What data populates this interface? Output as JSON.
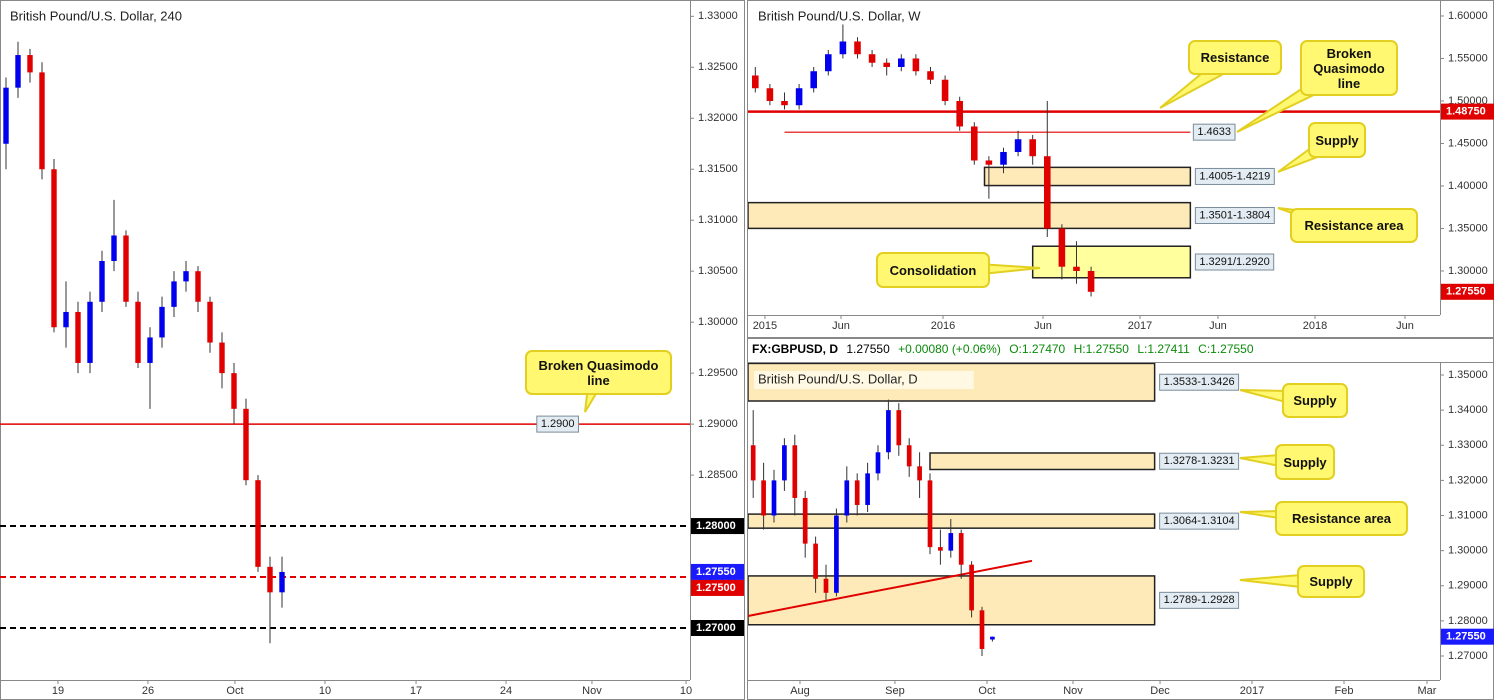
{
  "chart_data": [
    {
      "type": "candlestick",
      "title": "British Pound/U.S. Dollar, 240",
      "up_color": "#0000ee",
      "down_color": "#e00000",
      "xlim": [
        0,
        57.5
      ],
      "xticks": [
        {
          "value": 4.83,
          "label": "19"
        },
        {
          "value": 12.33,
          "label": "26"
        },
        {
          "value": 19.58,
          "label": "Oct"
        },
        {
          "value": 27.08,
          "label": "10"
        },
        {
          "value": 34.67,
          "label": "17"
        },
        {
          "value": 42.17,
          "label": "24"
        },
        {
          "value": 49.33,
          "label": "Nov"
        },
        {
          "value": 57.17,
          "label": "10"
        }
      ],
      "ylim": [
        1.2649,
        1.3316
      ],
      "yticks": [
        {
          "value": 1.33,
          "label": "1.33000"
        },
        {
          "value": 1.325,
          "label": "1.32500"
        },
        {
          "value": 1.32,
          "label": "1.32000"
        },
        {
          "value": 1.315,
          "label": "1.31500"
        },
        {
          "value": 1.31,
          "label": "1.31000"
        },
        {
          "value": 1.305,
          "label": "1.30500"
        },
        {
          "value": 1.3,
          "label": "1.30000"
        },
        {
          "value": 1.295,
          "label": "1.29500"
        },
        {
          "value": 1.29,
          "label": "1.29000"
        },
        {
          "value": 1.285,
          "label": "1.28500"
        },
        {
          "value": 1.28,
          "label": "1.28000"
        },
        {
          "value": 1.275,
          "label": "1.27500"
        },
        {
          "value": 1.27,
          "label": "1.27000"
        }
      ],
      "open": [
        1.3175,
        1.323,
        1.3262,
        1.3245,
        1.315,
        1.2995,
        1.301,
        1.296,
        1.302,
        1.306,
        1.3085,
        1.302,
        1.296,
        1.2985,
        1.3015,
        1.304,
        1.305,
        1.302,
        1.298,
        1.295,
        1.2915,
        1.2845,
        1.276,
        1.2735
      ],
      "high": [
        1.324,
        1.3275,
        1.3268,
        1.3255,
        1.316,
        1.304,
        1.302,
        1.303,
        1.307,
        1.312,
        1.309,
        1.303,
        1.2995,
        1.3025,
        1.305,
        1.306,
        1.3055,
        1.3025,
        1.299,
        1.296,
        1.2925,
        1.285,
        1.277,
        1.277
      ],
      "low": [
        1.315,
        1.322,
        1.3235,
        1.314,
        1.299,
        1.2975,
        1.295,
        1.295,
        1.301,
        1.305,
        1.3015,
        1.2955,
        1.2915,
        1.2975,
        1.3005,
        1.303,
        1.301,
        1.297,
        1.2935,
        1.29,
        1.284,
        1.2755,
        1.2685,
        1.272
      ],
      "close": [
        1.323,
        1.3262,
        1.3245,
        1.315,
        1.2995,
        1.301,
        1.296,
        1.302,
        1.306,
        1.3085,
        1.302,
        1.296,
        1.2985,
        1.3015,
        1.304,
        1.305,
        1.302,
        1.298,
        1.295,
        1.2915,
        1.2845,
        1.276,
        1.2735,
        1.2755
      ],
      "levels": [
        {
          "value": 1.29,
          "color": "#e00000",
          "dash": false,
          "width": 1.5,
          "label": "1.2900"
        },
        {
          "value": 1.28,
          "color": "#000000",
          "dash": true,
          "width": 2,
          "axis_label": "1.28000"
        },
        {
          "value": 1.275,
          "color": "#e00000",
          "dash": true,
          "width": 2,
          "axis_label": "1.27500"
        },
        {
          "value": 1.27,
          "color": "#000000",
          "dash": true,
          "width": 2,
          "axis_label": "1.27000"
        }
      ],
      "last": {
        "value": 1.2755,
        "label": "1.27550",
        "color": "#1a1aff"
      },
      "zones": [],
      "callouts": [
        "Broken Quasimodo line"
      ]
    },
    {
      "type": "candlestick",
      "title": "British Pound/U.S. Dollar, W",
      "up_color": "#0000ee",
      "down_color": "#e00000",
      "xlim": [
        0,
        47.4
      ],
      "xticks": [
        {
          "value": 1.16,
          "label": "2015"
        },
        {
          "value": 6.37,
          "label": "Jun"
        },
        {
          "value": 13.36,
          "label": "2016"
        },
        {
          "value": 20.21,
          "label": "Jun"
        },
        {
          "value": 26.85,
          "label": "2017"
        },
        {
          "value": 32.19,
          "label": "Jun"
        },
        {
          "value": 38.84,
          "label": "2018"
        },
        {
          "value": 45.0,
          "label": "Jun"
        }
      ],
      "ylim": [
        1.2482,
        1.6188
      ],
      "yticks": [
        {
          "value": 1.6,
          "label": "1.60000"
        },
        {
          "value": 1.55,
          "label": "1.55000"
        },
        {
          "value": 1.5,
          "label": "1.50000"
        },
        {
          "value": 1.45,
          "label": "1.45000"
        },
        {
          "value": 1.4,
          "label": "1.40000"
        },
        {
          "value": 1.35,
          "label": "1.35000"
        },
        {
          "value": 1.3,
          "label": "1.30000"
        }
      ],
      "open": [
        1.53,
        1.515,
        1.5,
        1.495,
        1.515,
        1.535,
        1.555,
        1.57,
        1.555,
        1.545,
        1.54,
        1.55,
        1.535,
        1.525,
        1.5,
        1.47,
        1.43,
        1.425,
        1.44,
        1.455,
        1.435,
        1.35,
        1.305,
        1.3
      ],
      "high": [
        1.54,
        1.52,
        1.51,
        1.52,
        1.54,
        1.56,
        1.59,
        1.575,
        1.56,
        1.55,
        1.555,
        1.555,
        1.54,
        1.53,
        1.505,
        1.475,
        1.435,
        1.445,
        1.465,
        1.46,
        1.5,
        1.355,
        1.335,
        1.305
      ],
      "low": [
        1.51,
        1.495,
        1.49,
        1.49,
        1.51,
        1.53,
        1.55,
        1.55,
        1.54,
        1.53,
        1.535,
        1.53,
        1.52,
        1.495,
        1.465,
        1.425,
        1.385,
        1.415,
        1.435,
        1.425,
        1.34,
        1.29,
        1.285,
        1.27
      ],
      "close": [
        1.515,
        1.5,
        1.495,
        1.515,
        1.535,
        1.555,
        1.57,
        1.555,
        1.545,
        1.54,
        1.55,
        1.535,
        1.525,
        1.5,
        1.47,
        1.43,
        1.425,
        1.44,
        1.455,
        1.435,
        1.35,
        1.305,
        1.3,
        1.2755
      ],
      "levels": [
        {
          "value": 1.4875,
          "color": "#e00000",
          "dash": false,
          "width": 2.5,
          "axis_label": "1.48750"
        },
        {
          "value": 1.4633,
          "color": "#e00000",
          "dash": false,
          "width": 1.2,
          "from": 2.5,
          "to": 30.3,
          "label": "1.4633"
        }
      ],
      "last": {
        "value": 1.2755,
        "label": "1.27550",
        "color": "#e00000"
      },
      "zones": [
        {
          "low": 1.4005,
          "high": 1.4219,
          "from": 16.2,
          "to": 30.3,
          "label": "1.4005-1.4219",
          "fill": "#fdeab8"
        },
        {
          "low": 1.3501,
          "high": 1.3804,
          "from": 0,
          "to": 30.3,
          "label": "1.3501-1.3804",
          "fill": "#fdeab8"
        },
        {
          "low": 1.292,
          "high": 1.3291,
          "from": 19.5,
          "to": 30.3,
          "label": "1.3291/1.2920",
          "fill": "#ffff9e"
        }
      ],
      "callouts": [
        "Resistance",
        "Broken Quasimodo line",
        "Supply",
        "Resistance area",
        "Consolidation"
      ]
    },
    {
      "type": "candlestick",
      "title": "British Pound/U.S. Dollar, D",
      "header": {
        "symbol": "FX:GBPUSD, D",
        "price": "1.27550",
        "change": "+0.00080 (+0.06%)",
        "open": "O:1.27470",
        "high": "H:1.27550",
        "low": "L:1.27411",
        "close": "C:1.27550"
      },
      "up_color": "#0000ee",
      "down_color": "#e00000",
      "xlim": [
        0,
        66.54
      ],
      "xticks": [
        {
          "value": 5.0,
          "label": "Aug"
        },
        {
          "value": 14.13,
          "label": "Sep"
        },
        {
          "value": 22.98,
          "label": "Oct"
        },
        {
          "value": 31.25,
          "label": "Nov"
        },
        {
          "value": 39.62,
          "label": "Dec"
        },
        {
          "value": 48.46,
          "label": "2017"
        },
        {
          "value": 57.31,
          "label": "Feb"
        },
        {
          "value": 65.29,
          "label": "Mar"
        }
      ],
      "ylim": [
        1.26317,
        1.35342
      ],
      "yticks": [
        {
          "value": 1.35,
          "label": "1.35000"
        },
        {
          "value": 1.34,
          "label": "1.34000"
        },
        {
          "value": 1.33,
          "label": "1.33000"
        },
        {
          "value": 1.32,
          "label": "1.32000"
        },
        {
          "value": 1.31,
          "label": "1.31000"
        },
        {
          "value": 1.3,
          "label": "1.30000"
        },
        {
          "value": 1.29,
          "label": "1.29000"
        },
        {
          "value": 1.28,
          "label": "1.28000"
        },
        {
          "value": 1.27,
          "label": "1.27000"
        }
      ],
      "open": [
        1.33,
        1.32,
        1.31,
        1.32,
        1.33,
        1.315,
        1.302,
        1.292,
        1.288,
        1.31,
        1.32,
        1.313,
        1.322,
        1.328,
        1.34,
        1.33,
        1.324,
        1.32,
        1.301,
        1.3,
        1.305,
        1.296,
        1.283,
        1.2747
      ],
      "high": [
        1.34,
        1.325,
        1.323,
        1.332,
        1.333,
        1.317,
        1.304,
        1.296,
        1.312,
        1.324,
        1.322,
        1.325,
        1.33,
        1.343,
        1.342,
        1.332,
        1.328,
        1.322,
        1.306,
        1.309,
        1.306,
        1.297,
        1.284,
        1.2755
      ],
      "low": [
        1.315,
        1.306,
        1.308,
        1.317,
        1.31,
        1.298,
        1.288,
        1.286,
        1.287,
        1.308,
        1.31,
        1.311,
        1.32,
        1.326,
        1.327,
        1.321,
        1.315,
        1.299,
        1.296,
        1.298,
        1.292,
        1.281,
        1.27,
        1.27411
      ],
      "close": [
        1.32,
        1.31,
        1.32,
        1.33,
        1.315,
        1.302,
        1.292,
        1.288,
        1.31,
        1.32,
        1.313,
        1.322,
        1.328,
        1.34,
        1.33,
        1.324,
        1.32,
        1.301,
        1.3,
        1.305,
        1.296,
        1.283,
        1.272,
        1.2755
      ],
      "levels": [],
      "trendline": {
        "from": [
          0,
          1.2814
        ],
        "to": [
          27.31,
          1.2971
        ],
        "color": "#e00000"
      },
      "last": {
        "value": 1.2755,
        "label": "1.27550",
        "color": "#1a1aff"
      },
      "zones": [
        {
          "low": 1.3426,
          "high": 1.3533,
          "from": 0,
          "to": 39.1,
          "label": "1.3533-1.3426",
          "fill": "#fdeab8"
        },
        {
          "low": 1.3231,
          "high": 1.3278,
          "from": 17.5,
          "to": 39.1,
          "label": "1.3278-1.3231",
          "fill": "#fdeab8"
        },
        {
          "low": 1.3064,
          "high": 1.3104,
          "from": 0,
          "to": 39.1,
          "label": "1.3064-1.3104",
          "fill": "#fdeab8"
        },
        {
          "low": 1.2789,
          "high": 1.2928,
          "from": 0,
          "to": 39.1,
          "label": "1.2789-1.2928",
          "fill": "#fdeab8"
        }
      ],
      "callouts": [
        "Supply",
        "Supply",
        "Resistance area",
        "Supply"
      ]
    }
  ]
}
